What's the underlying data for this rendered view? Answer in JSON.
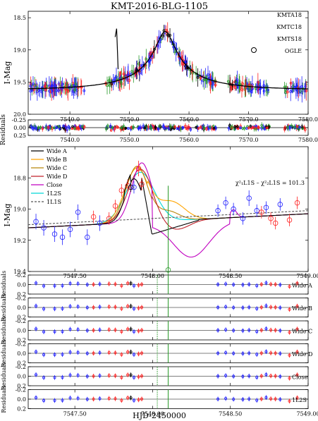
{
  "chart_data": {
    "type": "scatter",
    "title": "KMT-2016-BLG-1105",
    "xlabel": "HJD-2450000",
    "ylabel": "I-Mag",
    "residual_label": "Residuals",
    "top_panel": {
      "xlim": [
        7533,
        7580
      ],
      "ylim": [
        20.0,
        18.4
      ],
      "xticks": [
        "7540.0",
        "7550.0",
        "7560.0",
        "7570.0",
        "7580.0"
      ],
      "xtick_values": [
        7540,
        7550,
        7560,
        7570,
        7580
      ],
      "yticks": [
        "18.5",
        "19.0",
        "19.5",
        "20.0"
      ],
      "ytick_values": [
        18.5,
        19.0,
        19.5,
        20.0
      ],
      "legend": [
        {
          "name": "KMTA18",
          "color": "#2a9a2a"
        },
        {
          "name": "KMTC18",
          "color": "#ff2020"
        },
        {
          "name": "KMTS18",
          "color": "#2020ff"
        },
        {
          "name": "OGLE",
          "color": "#000000"
        }
      ],
      "model": {
        "t0": 7556.0,
        "u0": 0.11,
        "tE": 13.5,
        "fs": 0.16,
        "base": 19.62
      },
      "spike": {
        "x": [
          7547.6,
          7547.85,
          7548.0,
          7548.1
        ],
        "y": [
          18.8,
          18.67,
          19.05,
          19.3
        ]
      }
    },
    "top_residuals": {
      "ylim": [
        0.25,
        -0.25
      ],
      "yticks": [
        "-0.25",
        "0.00",
        "0.25"
      ],
      "ytick_values": [
        -0.25,
        0.0,
        0.25
      ],
      "xticks": [
        "7540.0",
        "7550.0",
        "7560.0",
        "7570.0",
        "7580.0"
      ]
    },
    "zoom_panel": {
      "xlim": [
        7547.2,
        7549.0
      ],
      "ylim": [
        19.4,
        18.6
      ],
      "xticks": [
        "7547.50",
        "7548.00",
        "7548.50",
        "7549.00"
      ],
      "xtick_values": [
        7547.5,
        7548.0,
        7548.5,
        7549.0
      ],
      "yticks": [
        "18.8",
        "19.0",
        "19.2",
        "19.4"
      ],
      "ytick_values": [
        18.8,
        19.0,
        19.2,
        19.4
      ],
      "annotation": "χ²₁L1S – χ²₂L1S = 101.3",
      "legend": [
        {
          "name": "Wide A",
          "color": "#000000",
          "dash": false
        },
        {
          "name": "Wide B",
          "color": "#ffa500",
          "dash": false
        },
        {
          "name": "Wide C",
          "color": "#b8860b",
          "dash": false
        },
        {
          "name": "Wide D",
          "color": "#c0202a",
          "dash": false
        },
        {
          "name": "Close",
          "color": "#c000c0",
          "dash": false
        },
        {
          "name": "1L2S",
          "color": "#00d8d8",
          "dash": false
        },
        {
          "name": "1L1S",
          "color": "#555555",
          "dash": true
        }
      ],
      "points": [
        {
          "x": 7547.25,
          "y": 19.08,
          "err": 0.05,
          "c": "blue"
        },
        {
          "x": 7547.3,
          "y": 19.12,
          "err": 0.05,
          "c": "blue"
        },
        {
          "x": 7547.37,
          "y": 19.16,
          "err": 0.05,
          "c": "blue"
        },
        {
          "x": 7547.42,
          "y": 19.18,
          "err": 0.05,
          "c": "blue"
        },
        {
          "x": 7547.47,
          "y": 19.13,
          "err": 0.05,
          "c": "blue"
        },
        {
          "x": 7547.52,
          "y": 19.02,
          "err": 0.05,
          "c": "blue"
        },
        {
          "x": 7547.58,
          "y": 19.18,
          "err": 0.05,
          "c": "blue"
        },
        {
          "x": 7547.62,
          "y": 19.05,
          "err": 0.04,
          "c": "red"
        },
        {
          "x": 7547.66,
          "y": 19.09,
          "err": 0.05,
          "c": "blue"
        },
        {
          "x": 7547.72,
          "y": 19.06,
          "err": 0.04,
          "c": "red"
        },
        {
          "x": 7547.76,
          "y": 18.98,
          "err": 0.04,
          "c": "red"
        },
        {
          "x": 7547.8,
          "y": 18.88,
          "err": 0.04,
          "c": "red"
        },
        {
          "x": 7547.84,
          "y": 18.85,
          "err": 0.04,
          "c": "red"
        },
        {
          "x": 7547.86,
          "y": 18.86,
          "err": 0.03,
          "c": "black"
        },
        {
          "x": 7547.88,
          "y": 18.86,
          "err": 0.04,
          "c": "blue"
        },
        {
          "x": 7547.91,
          "y": 18.74,
          "err": 0.05,
          "c": "red"
        },
        {
          "x": 7547.93,
          "y": 18.84,
          "err": 0.04,
          "c": "red"
        },
        {
          "x": 7548.1,
          "y": 19.39,
          "err": 0.06,
          "c": "green"
        },
        {
          "x": 7548.42,
          "y": 19.01,
          "err": 0.04,
          "c": "blue"
        },
        {
          "x": 7548.47,
          "y": 18.96,
          "err": 0.04,
          "c": "blue"
        },
        {
          "x": 7548.52,
          "y": 19.0,
          "err": 0.04,
          "c": "blue"
        },
        {
          "x": 7548.58,
          "y": 19.06,
          "err": 0.04,
          "c": "blue"
        },
        {
          "x": 7548.62,
          "y": 18.93,
          "err": 0.05,
          "c": "blue"
        },
        {
          "x": 7548.67,
          "y": 19.01,
          "err": 0.04,
          "c": "blue"
        },
        {
          "x": 7548.7,
          "y": 19.02,
          "err": 0.04,
          "c": "red"
        },
        {
          "x": 7548.73,
          "y": 18.99,
          "err": 0.04,
          "c": "blue"
        },
        {
          "x": 7548.76,
          "y": 19.06,
          "err": 0.04,
          "c": "red"
        },
        {
          "x": 7548.79,
          "y": 19.09,
          "err": 0.04,
          "c": "red"
        },
        {
          "x": 7548.82,
          "y": 18.97,
          "err": 0.04,
          "c": "blue"
        },
        {
          "x": 7548.88,
          "y": 19.07,
          "err": 0.04,
          "c": "red"
        },
        {
          "x": 7548.93,
          "y": 18.96,
          "err": 0.04,
          "c": "red"
        }
      ]
    },
    "zoom_residuals": {
      "ylim": [
        0.2,
        -0.2
      ],
      "yticks": [
        "-0.2",
        "0.0",
        "0.2"
      ],
      "ytick_values": [
        -0.2,
        0.0,
        0.2
      ],
      "xticks": [
        "7547.50",
        "7548.00",
        "7548.50",
        "7549.00"
      ],
      "panels": [
        "Wide A",
        "Wide B",
        "Wide C",
        "Wide D",
        "Close",
        "1L2S"
      ]
    }
  },
  "colors": {
    "green": "#2a9a2a",
    "red": "#ff2020",
    "blue": "#2020ff",
    "black": "#000000"
  }
}
